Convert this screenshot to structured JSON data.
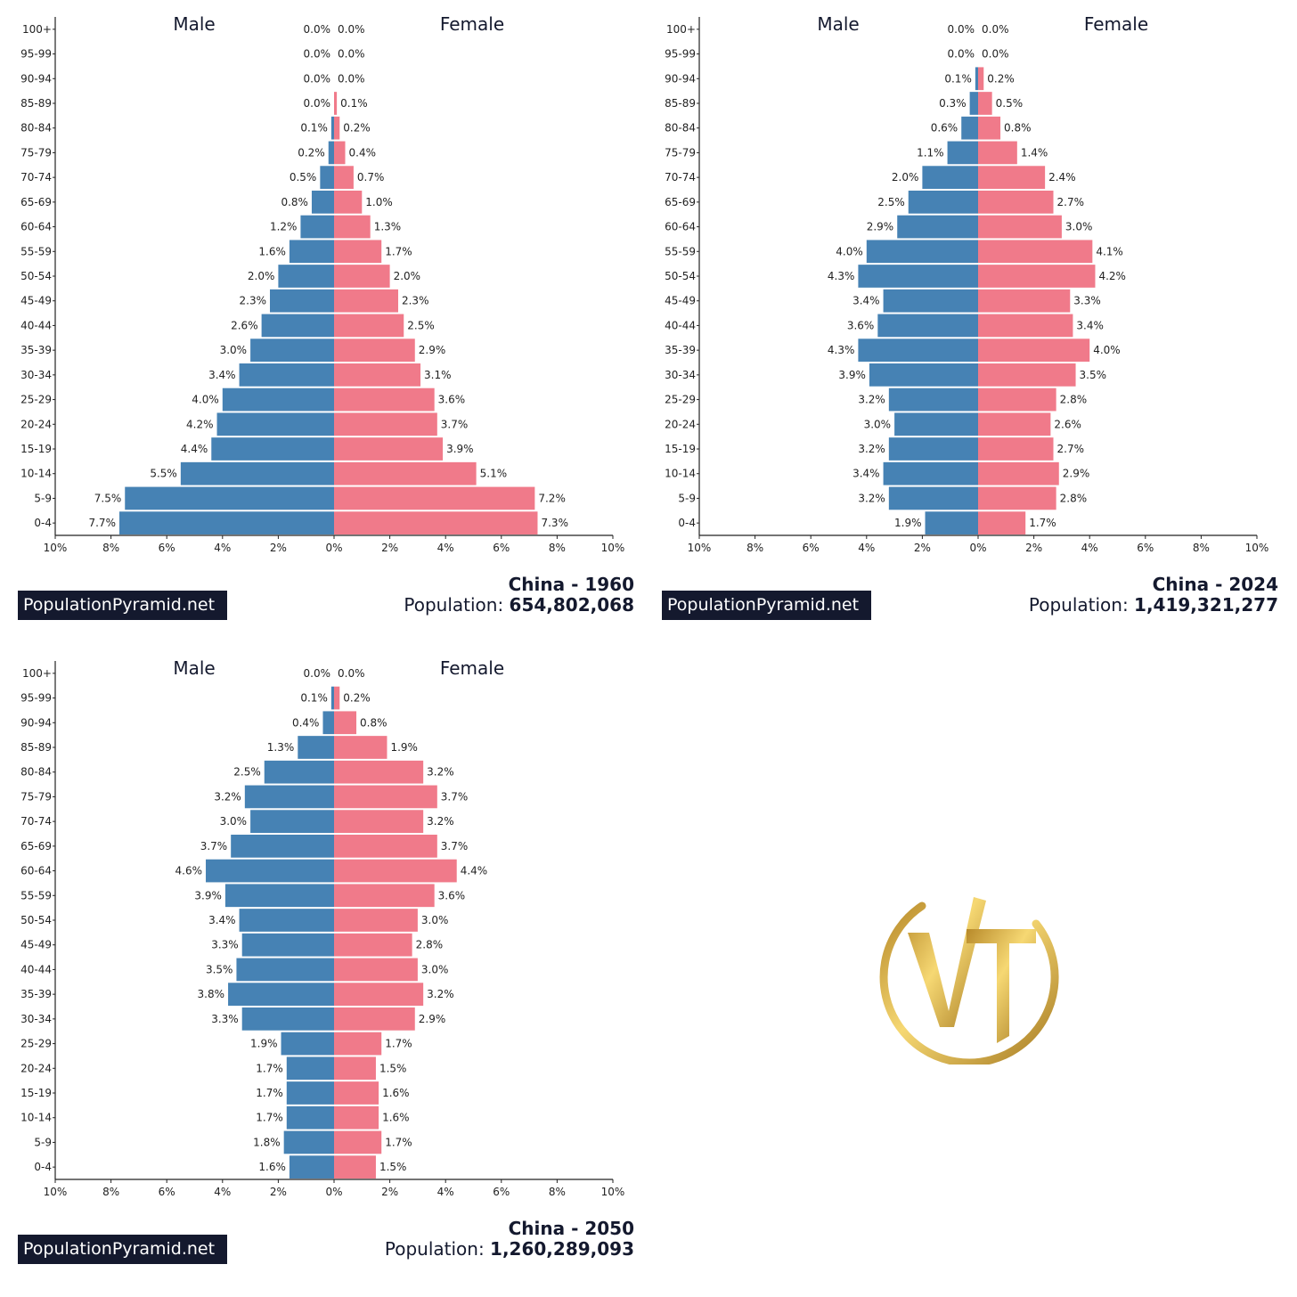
{
  "colors": {
    "male": "#4682b4",
    "female": "#f07a8a",
    "axis": "#222222",
    "text": "#14192e"
  },
  "chart_data": [
    {
      "type": "bar",
      "title": "China - 1960",
      "population_label": "Population:",
      "population": "654,802,068",
      "brand": "PopulationPyramid.net",
      "male_label": "Male",
      "female_label": "Female",
      "categories": [
        "100+",
        "95-99",
        "90-94",
        "85-89",
        "80-84",
        "75-79",
        "70-74",
        "65-69",
        "60-64",
        "55-59",
        "50-54",
        "45-49",
        "40-44",
        "35-39",
        "30-34",
        "25-29",
        "20-24",
        "15-19",
        "10-14",
        "5-9",
        "0-4"
      ],
      "series": [
        {
          "name": "Male",
          "values": [
            0.0,
            0.0,
            0.0,
            0.0,
            0.1,
            0.2,
            0.5,
            0.8,
            1.2,
            1.6,
            2.0,
            2.3,
            2.6,
            3.0,
            3.4,
            4.0,
            4.2,
            4.4,
            5.5,
            7.5,
            7.7
          ]
        },
        {
          "name": "Female",
          "values": [
            0.0,
            0.0,
            0.0,
            0.1,
            0.2,
            0.4,
            0.7,
            1.0,
            1.3,
            1.7,
            2.0,
            2.3,
            2.5,
            2.9,
            3.1,
            3.6,
            3.7,
            3.9,
            5.1,
            7.2,
            7.3
          ]
        }
      ],
      "xlim": [
        -10,
        10
      ],
      "xticks": [
        "10%",
        "8%",
        "6%",
        "4%",
        "2%",
        "0%",
        "2%",
        "4%",
        "6%",
        "8%",
        "10%"
      ]
    },
    {
      "type": "bar",
      "title": "China - 2024",
      "population_label": "Population:",
      "population": "1,419,321,277",
      "brand": "PopulationPyramid.net",
      "male_label": "Male",
      "female_label": "Female",
      "categories": [
        "100+",
        "95-99",
        "90-94",
        "85-89",
        "80-84",
        "75-79",
        "70-74",
        "65-69",
        "60-64",
        "55-59",
        "50-54",
        "45-49",
        "40-44",
        "35-39",
        "30-34",
        "25-29",
        "20-24",
        "15-19",
        "10-14",
        "5-9",
        "0-4"
      ],
      "series": [
        {
          "name": "Male",
          "values": [
            0.0,
            0.0,
            0.1,
            0.3,
            0.6,
            1.1,
            2.0,
            2.5,
            2.9,
            4.0,
            4.3,
            3.4,
            3.6,
            4.3,
            3.9,
            3.2,
            3.0,
            3.2,
            3.4,
            3.2,
            1.9
          ]
        },
        {
          "name": "Female",
          "values": [
            0.0,
            0.0,
            0.2,
            0.5,
            0.8,
            1.4,
            2.4,
            2.7,
            3.0,
            4.1,
            4.2,
            3.3,
            3.4,
            4.0,
            3.5,
            2.8,
            2.6,
            2.7,
            2.9,
            2.8,
            1.7
          ]
        }
      ],
      "xlim": [
        -10,
        10
      ],
      "xticks": [
        "10%",
        "8%",
        "6%",
        "4%",
        "2%",
        "0%",
        "2%",
        "4%",
        "6%",
        "8%",
        "10%"
      ]
    },
    {
      "type": "bar",
      "title": "China - 2050",
      "population_label": "Population:",
      "population": "1,260,289,093",
      "brand": "PopulationPyramid.net",
      "male_label": "Male",
      "female_label": "Female",
      "categories": [
        "100+",
        "95-99",
        "90-94",
        "85-89",
        "80-84",
        "75-79",
        "70-74",
        "65-69",
        "60-64",
        "55-59",
        "50-54",
        "45-49",
        "40-44",
        "35-39",
        "30-34",
        "25-29",
        "20-24",
        "15-19",
        "10-14",
        "5-9",
        "0-4"
      ],
      "series": [
        {
          "name": "Male",
          "values": [
            0.0,
            0.1,
            0.4,
            1.3,
            2.5,
            3.2,
            3.0,
            3.7,
            4.6,
            3.9,
            3.4,
            3.3,
            3.5,
            3.8,
            3.3,
            1.9,
            1.7,
            1.7,
            1.7,
            1.8,
            1.6
          ]
        },
        {
          "name": "Female",
          "values": [
            0.0,
            0.2,
            0.8,
            1.9,
            3.2,
            3.7,
            3.2,
            3.7,
            4.4,
            3.6,
            3.0,
            2.8,
            3.0,
            3.2,
            2.9,
            1.7,
            1.5,
            1.6,
            1.6,
            1.7,
            1.5
          ]
        }
      ],
      "xlim": [
        -10,
        10
      ],
      "xticks": [
        "10%",
        "8%",
        "6%",
        "4%",
        "2%",
        "0%",
        "2%",
        "4%",
        "6%",
        "8%",
        "10%"
      ]
    }
  ],
  "logo": {
    "name": "vt-monogram-logo"
  }
}
